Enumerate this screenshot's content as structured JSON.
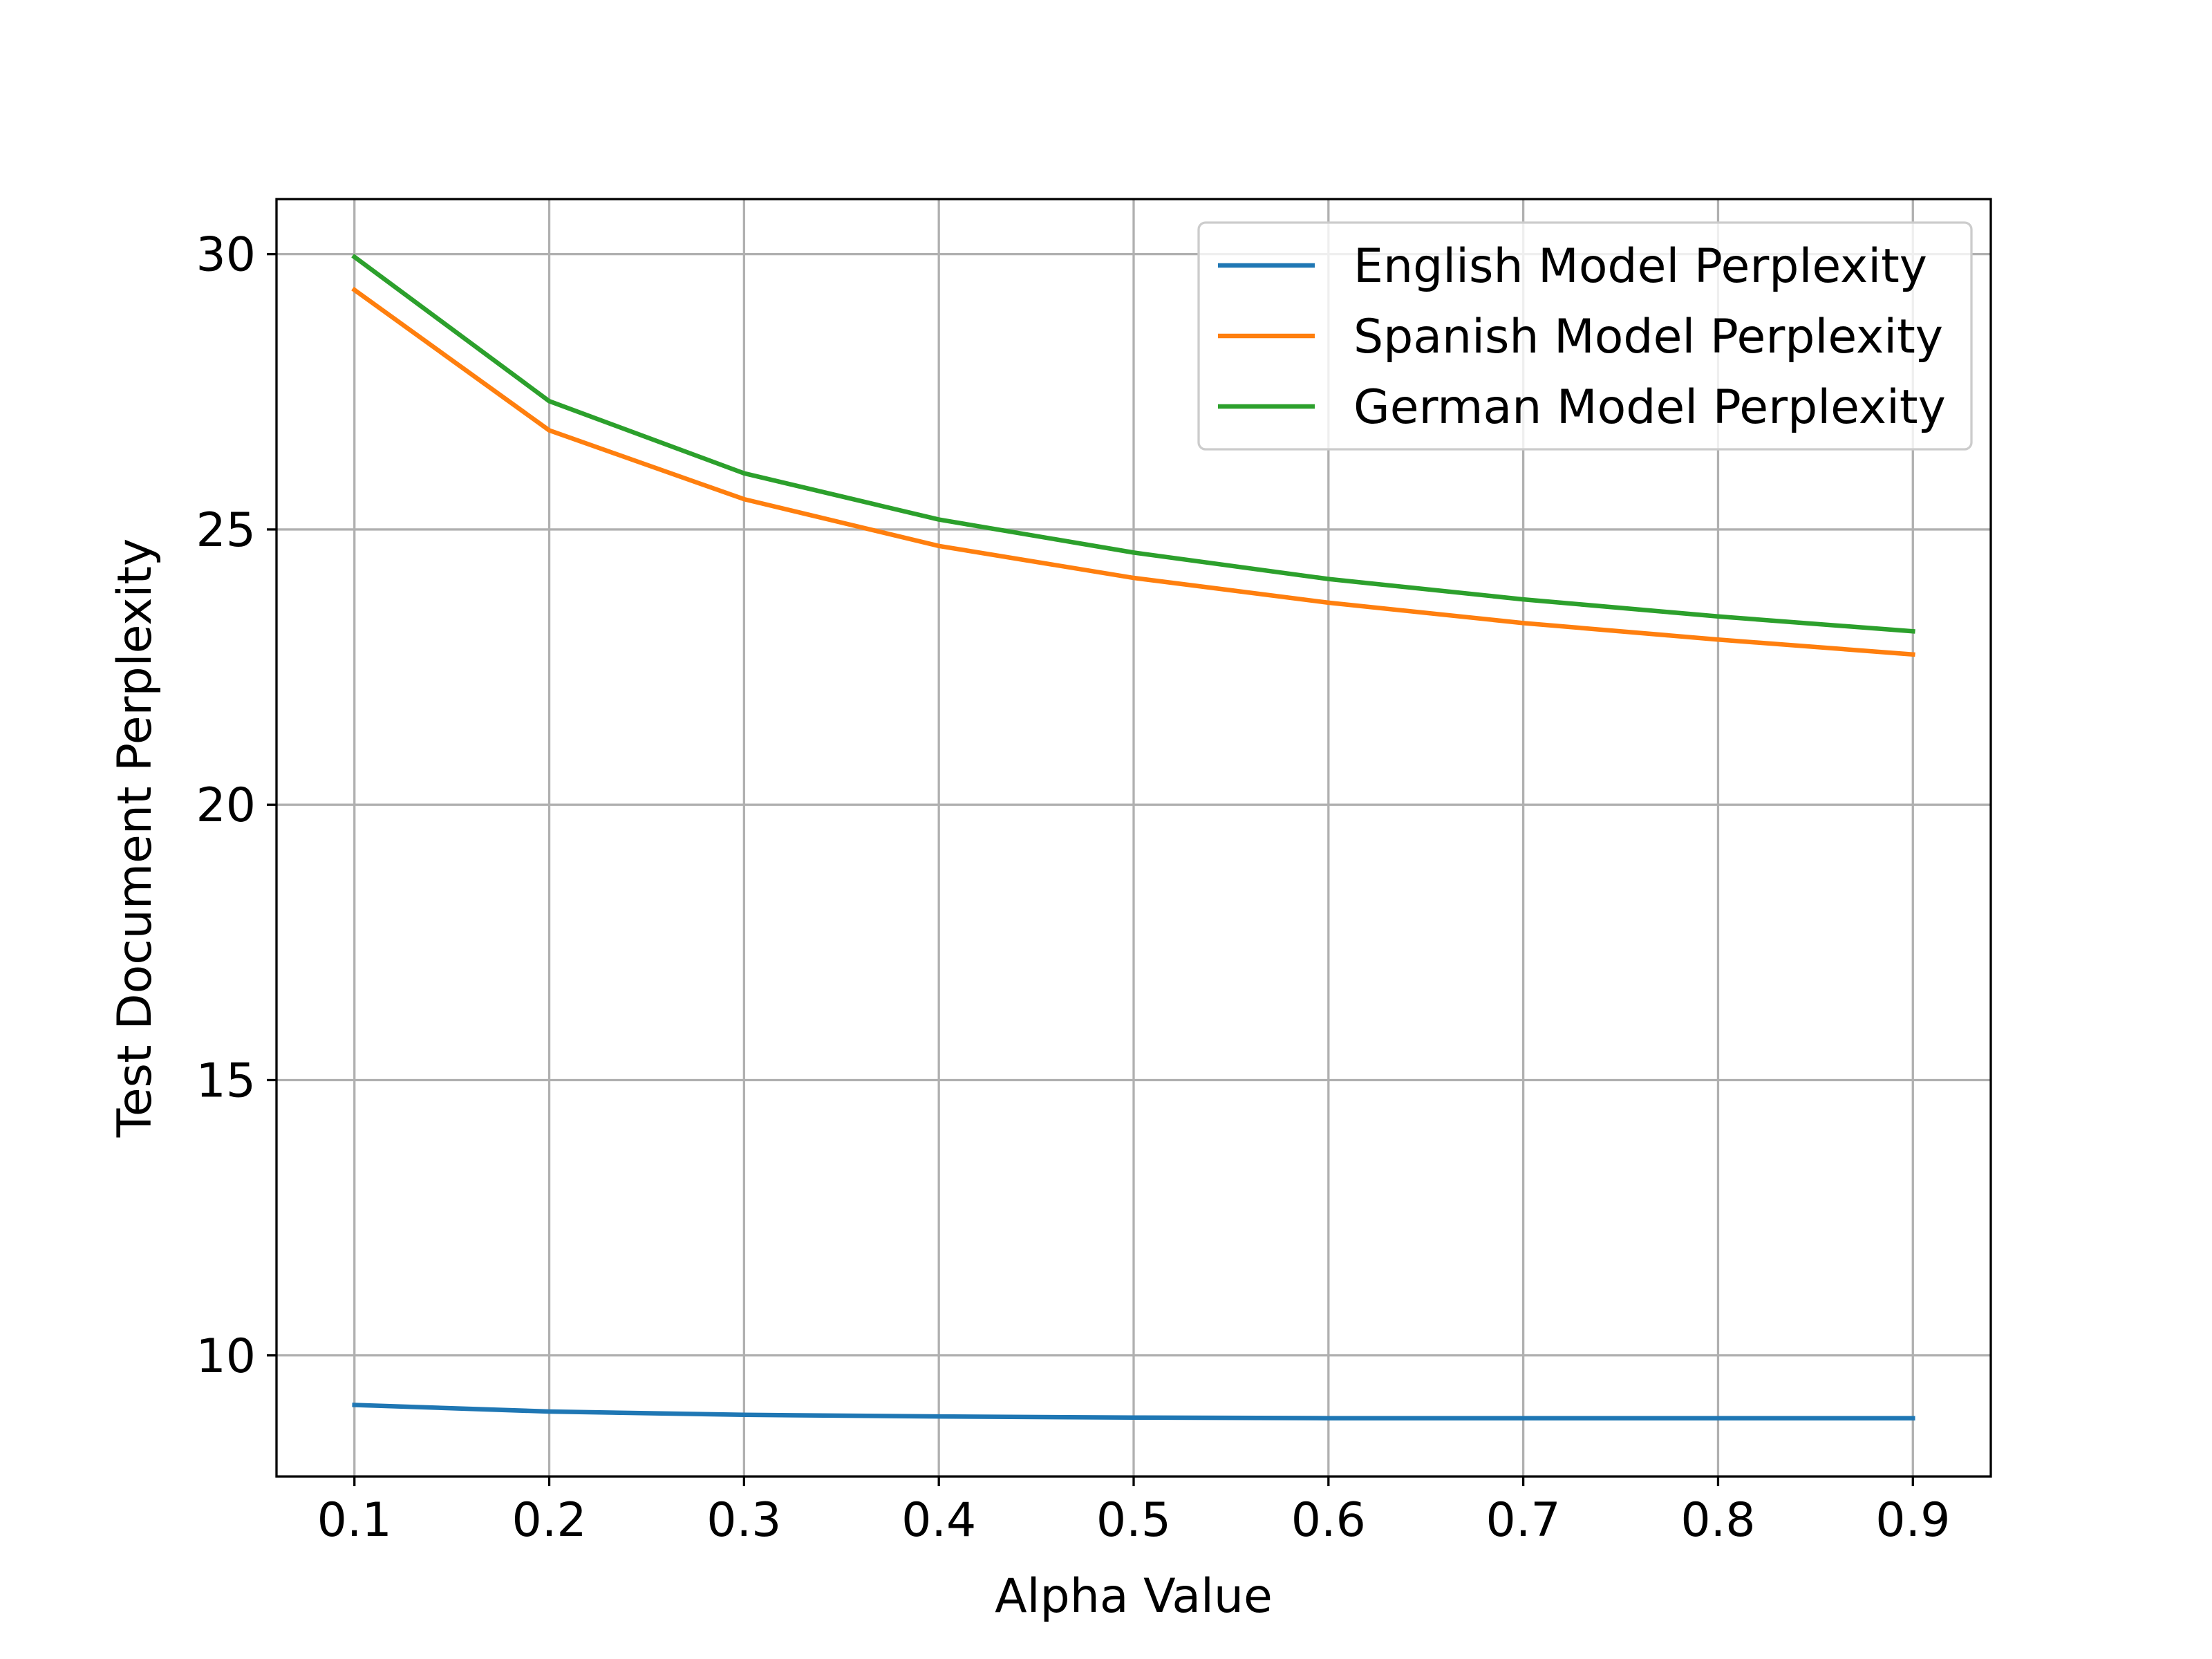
{
  "chart_data": {
    "type": "line",
    "title": "",
    "xlabel": "Alpha Value",
    "ylabel": "Test Document Perplexity",
    "x": [
      0.1,
      0.2,
      0.3,
      0.4,
      0.5,
      0.6,
      0.7,
      0.8,
      0.9
    ],
    "xlim": [
      0.06,
      0.94
    ],
    "ylim": [
      7.8,
      31.0
    ],
    "xticks": [
      "0.1",
      "0.2",
      "0.3",
      "0.4",
      "0.5",
      "0.6",
      "0.7",
      "0.8",
      "0.9"
    ],
    "yticks": [
      "10",
      "15",
      "20",
      "25",
      "30"
    ],
    "grid": true,
    "legend_position": "top-right",
    "series": [
      {
        "name": "English Model Perplexity",
        "color": "#1f77b4",
        "values": [
          9.1,
          8.98,
          8.92,
          8.89,
          8.87,
          8.86,
          8.86,
          8.86,
          8.86
        ]
      },
      {
        "name": "Spanish Model Perplexity",
        "color": "#ff7f0e",
        "values": [
          29.35,
          26.8,
          25.55,
          24.7,
          24.12,
          23.67,
          23.3,
          23.0,
          22.73
        ]
      },
      {
        "name": "German Model Perplexity",
        "color": "#2ca02c",
        "values": [
          29.95,
          27.33,
          26.02,
          25.18,
          24.58,
          24.1,
          23.73,
          23.42,
          23.15
        ]
      }
    ]
  }
}
